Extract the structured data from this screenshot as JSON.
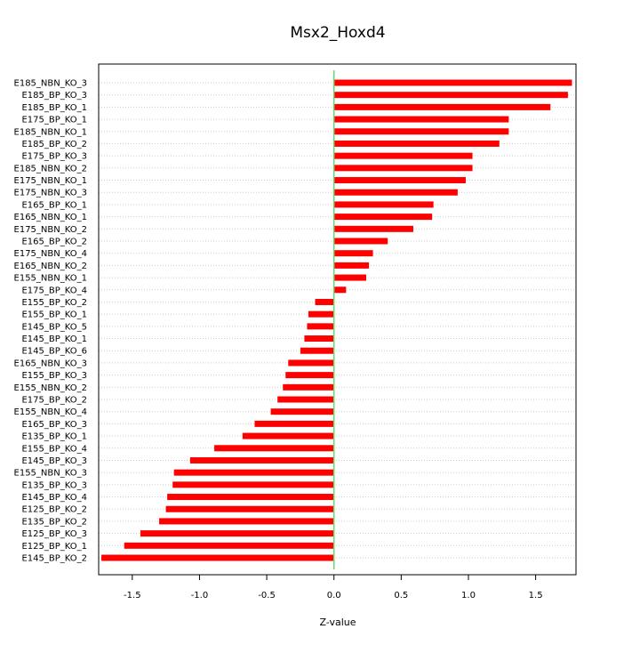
{
  "chart_data": {
    "type": "bar",
    "orientation": "horizontal",
    "title": "Msx2_Hoxd4",
    "xlabel": "Z-value",
    "ylabel": "",
    "xlim": [
      -1.75,
      1.8
    ],
    "xticks": [
      -1.5,
      -1.0,
      -0.5,
      0.0,
      0.5,
      1.0,
      1.5
    ],
    "xtick_labels": [
      "-1.5",
      "-1.0",
      "-0.5",
      "0.0",
      "0.5",
      "1.0",
      "1.5"
    ],
    "grid": "horizontal dotted",
    "colors": {
      "bar": "#ff0000",
      "zero_line": "#66dd66",
      "grid": "#cccccc",
      "frame": "#000000"
    },
    "categories": [
      "E185_NBN_KO_3",
      "E185_BP_KO_3",
      "E185_BP_KO_1",
      "E175_BP_KO_1",
      "E185_NBN_KO_1",
      "E185_BP_KO_2",
      "E175_BP_KO_3",
      "E185_NBN_KO_2",
      "E175_NBN_KO_1",
      "E175_NBN_KO_3",
      "E165_BP_KO_1",
      "E165_NBN_KO_1",
      "E175_NBN_KO_2",
      "E165_BP_KO_2",
      "E175_NBN_KO_4",
      "E165_NBN_KO_2",
      "E155_NBN_KO_1",
      "E175_BP_KO_4",
      "E155_BP_KO_2",
      "E155_BP_KO_1",
      "E145_BP_KO_5",
      "E145_BP_KO_1",
      "E145_BP_KO_6",
      "E165_NBN_KO_3",
      "E155_BP_KO_3",
      "E155_NBN_KO_2",
      "E175_BP_KO_2",
      "E155_NBN_KO_4",
      "E165_BP_KO_3",
      "E135_BP_KO_1",
      "E155_BP_KO_4",
      "E145_BP_KO_3",
      "E155_NBN_KO_3",
      "E135_BP_KO_3",
      "E145_BP_KO_4",
      "E125_BP_KO_2",
      "E135_BP_KO_2",
      "E125_BP_KO_3",
      "E125_BP_KO_1",
      "E145_BP_KO_2"
    ],
    "values": [
      1.77,
      1.74,
      1.61,
      1.3,
      1.3,
      1.23,
      1.03,
      1.03,
      0.98,
      0.92,
      0.74,
      0.73,
      0.59,
      0.4,
      0.29,
      0.26,
      0.24,
      0.09,
      -0.14,
      -0.19,
      -0.2,
      -0.22,
      -0.25,
      -0.34,
      -0.36,
      -0.38,
      -0.42,
      -0.47,
      -0.59,
      -0.68,
      -0.89,
      -1.07,
      -1.19,
      -1.2,
      -1.24,
      -1.25,
      -1.3,
      -1.44,
      -1.56,
      -1.73
    ]
  }
}
